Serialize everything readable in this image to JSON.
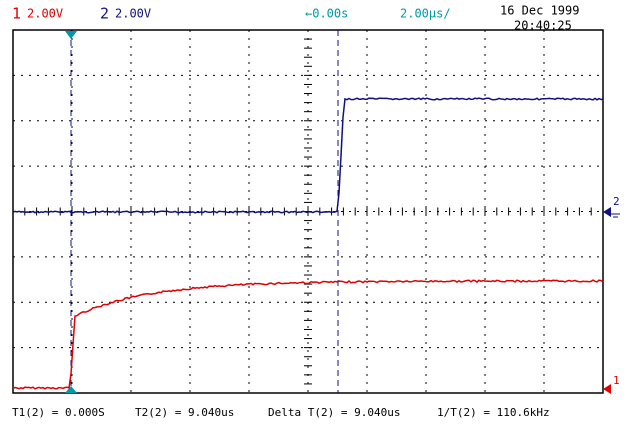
{
  "header": {
    "ch1_number": "1",
    "ch1_scale": "2.00V",
    "ch2_number": "2",
    "ch2_scale": "2.00V",
    "time_offset": "←0.00s",
    "time_scale": "2.00µs/",
    "date": "16 Dec 1999",
    "time": "20:40:25"
  },
  "markers": {
    "ch1": "1",
    "ch2": "2"
  },
  "measurements": {
    "t1": "T1(2) = 0.000S",
    "t2": "T2(2) = 9.040us",
    "delta": "Delta T(2) = 9.040us",
    "inverse": "1/T(2) = 110.6kHz"
  }
}
